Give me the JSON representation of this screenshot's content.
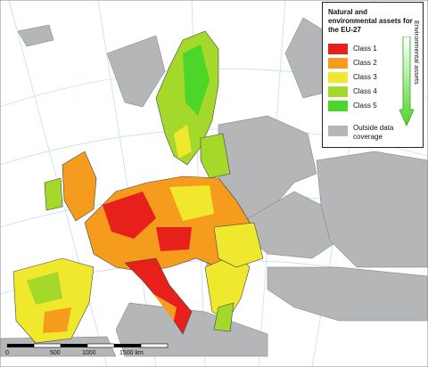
{
  "legend": {
    "title": "Natural and environmental assets for the EU-27",
    "axis_label": "Environmental assets",
    "classes": [
      {
        "label": "Class 1",
        "color": "#e8201b"
      },
      {
        "label": "Class 2",
        "color": "#f59b1d"
      },
      {
        "label": "Class 3",
        "color": "#f0e82c"
      },
      {
        "label": "Class 4",
        "color": "#a4d82b"
      },
      {
        "label": "Class 5",
        "color": "#4cd62a"
      }
    ],
    "outside": {
      "label": "Outside data coverage",
      "color": "#b4b6b8"
    }
  },
  "scale": {
    "ticks": [
      "0",
      "500",
      "1000",
      "1500 km"
    ]
  },
  "colors": {
    "sea": "#ffffff",
    "graticule": "#bfe1f2",
    "outside_land": "#b4b6b8",
    "border": "#444444"
  }
}
